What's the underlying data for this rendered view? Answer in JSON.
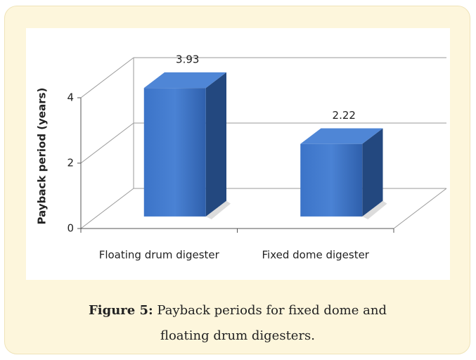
{
  "chart_data": {
    "type": "bar3d",
    "y_label": "Payback period (years)",
    "categories": [
      "Floating drum digester",
      "Fixed dome digester"
    ],
    "values": [
      3.93,
      2.22
    ],
    "color": "#3a70c4",
    "ylim": [
      0,
      4
    ],
    "yticks": [
      0,
      2,
      4
    ],
    "grid": true
  },
  "caption": {
    "label": "Figure 5:",
    "text": "Payback periods for fixed dome and floating drum digesters."
  }
}
